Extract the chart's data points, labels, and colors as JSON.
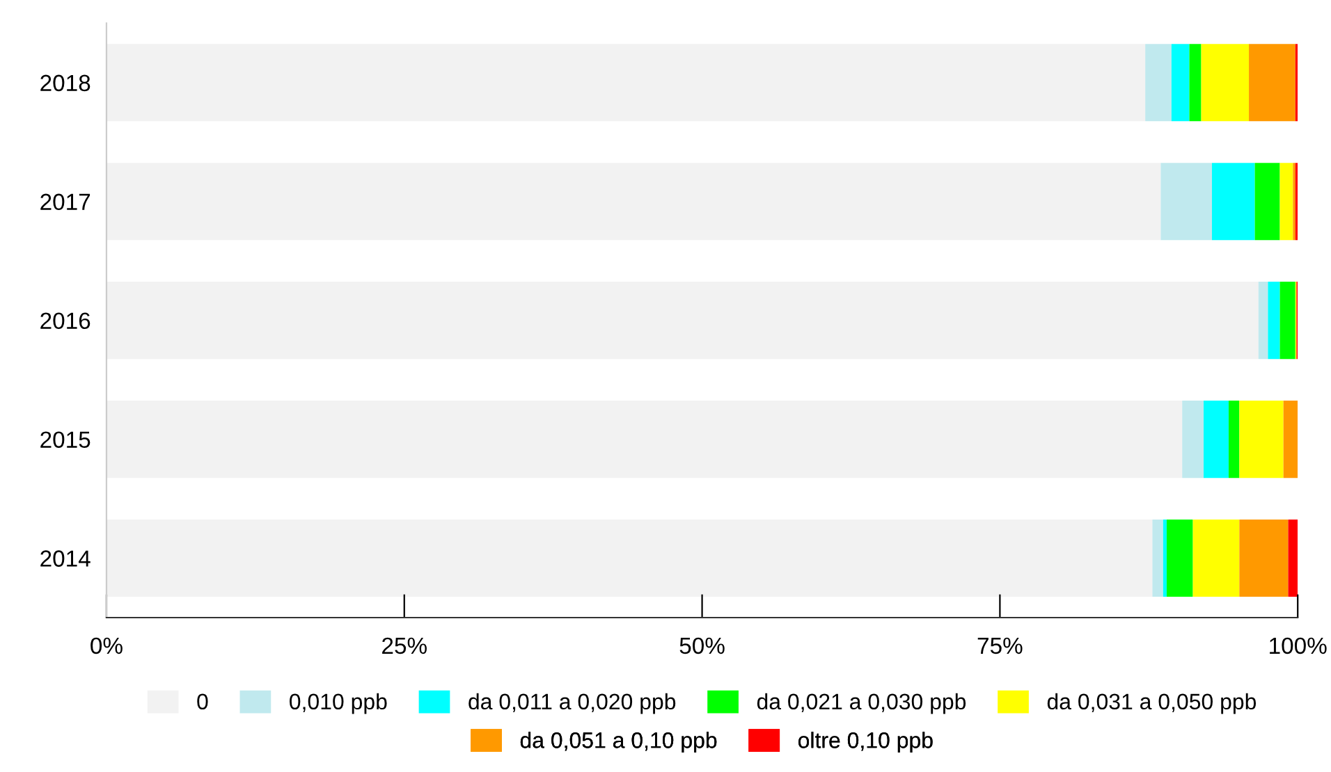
{
  "chart_data": {
    "type": "bar",
    "orientation": "horizontal",
    "stacked": true,
    "categories": [
      "2018",
      "2017",
      "2016",
      "2015",
      "2014"
    ],
    "xlim": [
      0,
      100
    ],
    "xticks": [
      {
        "value": 0,
        "label": "0%"
      },
      {
        "value": 25,
        "label": "25%"
      },
      {
        "value": 50,
        "label": "50%"
      },
      {
        "value": 75,
        "label": "75%"
      },
      {
        "value": 100,
        "label": "100%"
      }
    ],
    "grid": false,
    "legend": "bottom",
    "series": [
      {
        "name": "0",
        "color": "#f2f2f2",
        "values": [
          87.2,
          88.5,
          96.7,
          90.3,
          87.8
        ]
      },
      {
        "name": "0,010 ppb",
        "color": "#c0e9ee",
        "values": [
          2.2,
          4.3,
          0.8,
          1.8,
          0.9
        ]
      },
      {
        "name": "da 0,011 a 0,020 ppb",
        "color": "#00ffff",
        "values": [
          1.5,
          3.6,
          1.0,
          2.1,
          0.3
        ]
      },
      {
        "name": "da 0,021 a 0,030 ppb",
        "color": "#00ff00",
        "values": [
          1.0,
          2.1,
          1.3,
          0.9,
          2.2
        ]
      },
      {
        "name": "da 0,031 a 0,050 ppb",
        "color": "#ffff00",
        "values": [
          4.0,
          1.1,
          0.1,
          3.7,
          3.9
        ]
      },
      {
        "name": "da 0,051 a 0,10 ppb",
        "color": "#ff9900",
        "values": [
          3.9,
          0.2,
          0.0,
          1.2,
          4.1
        ]
      },
      {
        "name": "oltre 0,10 ppb",
        "color": "#ff0000",
        "values": [
          0.2,
          0.2,
          0.1,
          0.0,
          0.8
        ]
      }
    ]
  }
}
